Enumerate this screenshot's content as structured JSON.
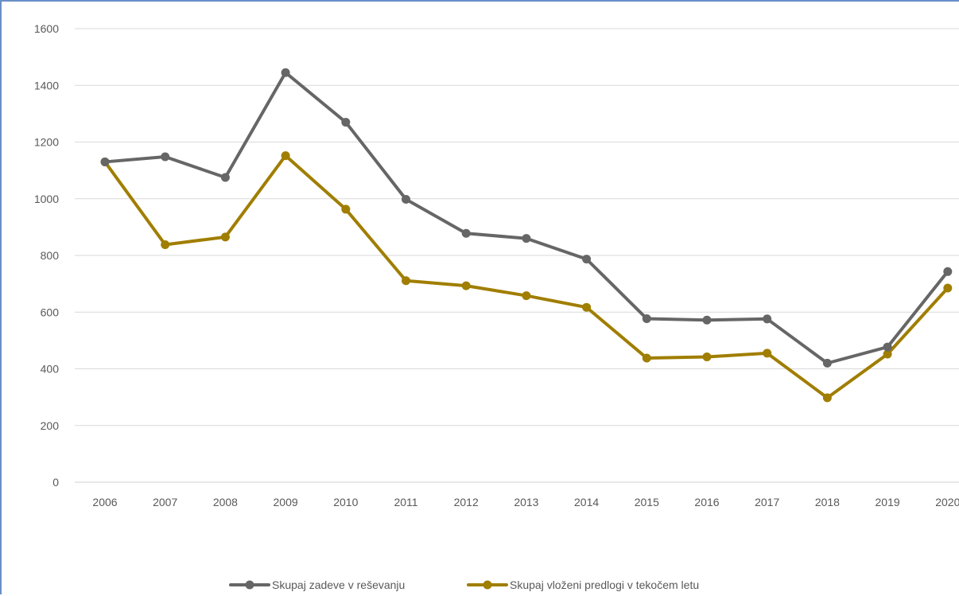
{
  "chart_data": {
    "type": "line",
    "title": "",
    "xlabel": "",
    "ylabel": "",
    "ylim": [
      0,
      1600
    ],
    "yticks": [
      0,
      200,
      400,
      600,
      800,
      1000,
      1200,
      1400,
      1600
    ],
    "grid": true,
    "legend_position": "bottom",
    "categories": [
      "2006",
      "2007",
      "2008",
      "2009",
      "2010",
      "2011",
      "2012",
      "2013",
      "2014",
      "2015",
      "2016",
      "2017",
      "2018",
      "2019",
      "2020"
    ],
    "series": [
      {
        "name": "Skupaj zadeve v reševanju",
        "color": "#666666",
        "values": [
          1130,
          1148,
          1075,
          1445,
          1270,
          998,
          878,
          860,
          787,
          577,
          572,
          576,
          420,
          477,
          743
        ]
      },
      {
        "name": "Skupaj vloženi predlogi v tekočem letu",
        "color": "#a07e00",
        "values": [
          1130,
          838,
          865,
          1152,
          963,
          711,
          693,
          658,
          617,
          438,
          442,
          455,
          298,
          452,
          685
        ]
      }
    ]
  }
}
